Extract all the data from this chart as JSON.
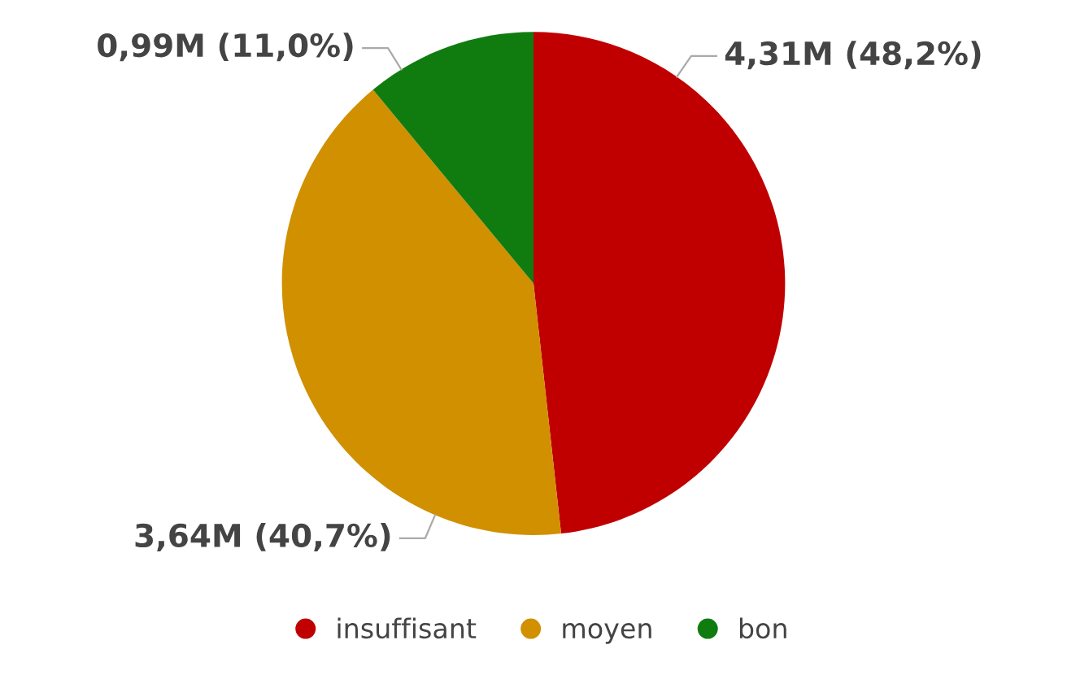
{
  "chart_data": {
    "type": "pie",
    "categories": [
      "insuffisant",
      "moyen",
      "bon"
    ],
    "values": [
      48.2,
      40.7,
      11.0
    ],
    "value_labels": [
      "4,31M (48,2%)",
      "3,64M (40,7%)",
      "0,99M (11,0%)"
    ],
    "colors": [
      "#c00000",
      "#d09000",
      "#107c10"
    ],
    "legend": "bottom"
  }
}
